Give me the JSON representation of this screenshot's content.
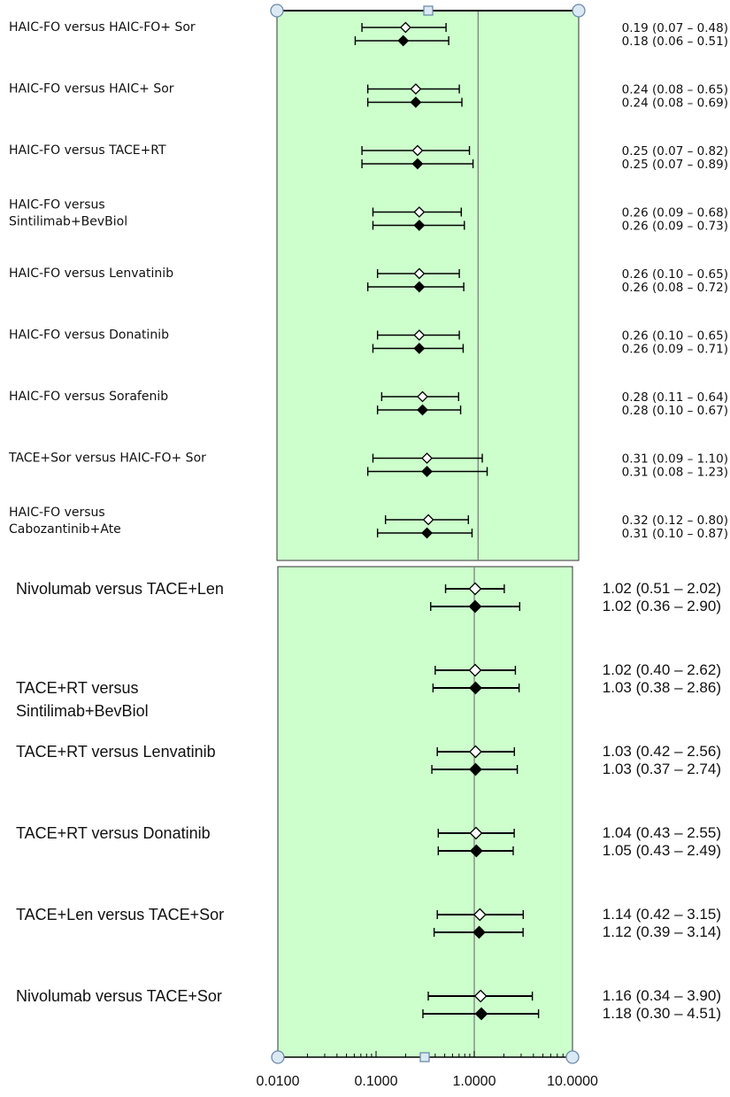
{
  "chart_data": [
    {
      "type": "forest",
      "x_scale": "log",
      "xlim": [
        0.01,
        10
      ],
      "reference_line": 1,
      "marker_legend": {
        "open_diamond": "open",
        "filled_diamond": "filled"
      },
      "rows": [
        {
          "label_lines": [
            "HAIC-FO versus HAIC-FO+ Sor"
          ],
          "open": {
            "est": 0.19,
            "lo": 0.07,
            "hi": 0.48,
            "text": "0.19 (0.07 – 0.48)"
          },
          "filled": {
            "est": 0.18,
            "lo": 0.06,
            "hi": 0.51,
            "text": "0.18 (0.06 – 0.51)"
          }
        },
        {
          "label_lines": [
            "HAIC-FO versus HAIC+ Sor"
          ],
          "open": {
            "est": 0.24,
            "lo": 0.08,
            "hi": 0.65,
            "text": "0.24 (0.08 – 0.65)"
          },
          "filled": {
            "est": 0.24,
            "lo": 0.08,
            "hi": 0.69,
            "text": "0.24 (0.08 – 0.69)"
          }
        },
        {
          "label_lines": [
            "HAIC-FO versus TACE+RT"
          ],
          "open": {
            "est": 0.25,
            "lo": 0.07,
            "hi": 0.82,
            "text": "0.25 (0.07 – 0.82)"
          },
          "filled": {
            "est": 0.25,
            "lo": 0.07,
            "hi": 0.89,
            "text": "0.25 (0.07 – 0.89)"
          }
        },
        {
          "label_lines": [
            "HAIC-FO versus",
            "Sintilimab+BevBiol"
          ],
          "open": {
            "est": 0.26,
            "lo": 0.09,
            "hi": 0.68,
            "text": "0.26 (0.09 – 0.68)"
          },
          "filled": {
            "est": 0.26,
            "lo": 0.09,
            "hi": 0.73,
            "text": "0.26 (0.09 – 0.73)"
          }
        },
        {
          "label_lines": [
            "HAIC-FO versus Lenvatinib"
          ],
          "open": {
            "est": 0.26,
            "lo": 0.1,
            "hi": 0.65,
            "text": "0.26 (0.10 – 0.65)"
          },
          "filled": {
            "est": 0.26,
            "lo": 0.08,
            "hi": 0.72,
            "text": "0.26 (0.08 – 0.72)"
          }
        },
        {
          "label_lines": [
            "HAIC-FO versus Donatinib"
          ],
          "open": {
            "est": 0.26,
            "lo": 0.1,
            "hi": 0.65,
            "text": "0.26 (0.10 – 0.65)"
          },
          "filled": {
            "est": 0.26,
            "lo": 0.09,
            "hi": 0.71,
            "text": "0.26 (0.09 – 0.71)"
          }
        },
        {
          "label_lines": [
            "HAIC-FO versus Sorafenib"
          ],
          "open": {
            "est": 0.28,
            "lo": 0.11,
            "hi": 0.64,
            "text": "0.28 (0.11 – 0.64)"
          },
          "filled": {
            "est": 0.28,
            "lo": 0.1,
            "hi": 0.67,
            "text": "0.28 (0.10 – 0.67)"
          }
        },
        {
          "label_lines": [
            "TACE+Sor versus HAIC-FO+ Sor"
          ],
          "open": {
            "est": 0.31,
            "lo": 0.09,
            "hi": 1.1,
            "text": "0.31 (0.09 – 1.10)"
          },
          "filled": {
            "est": 0.31,
            "lo": 0.08,
            "hi": 1.23,
            "text": "0.31 (0.08 – 1.23)"
          }
        },
        {
          "label_lines": [
            "HAIC-FO versus",
            "Cabozantinib+Ate"
          ],
          "open": {
            "est": 0.32,
            "lo": 0.12,
            "hi": 0.8,
            "text": "0.32 (0.12 – 0.80)"
          },
          "filled": {
            "est": 0.31,
            "lo": 0.1,
            "hi": 0.87,
            "text": "0.31 (0.10 – 0.87)"
          }
        }
      ]
    },
    {
      "type": "forest",
      "x_scale": "log",
      "xlim": [
        0.01,
        10
      ],
      "reference_line": 1,
      "x_ticks": [
        "0.0100",
        "0.1000",
        "1.0000",
        "10.0000"
      ],
      "rows": [
        {
          "label_lines": [
            "Nivolumab versus TACE+Len"
          ],
          "open": {
            "est": 1.02,
            "lo": 0.51,
            "hi": 2.02,
            "text": "1.02 (0.51 – 2.02)"
          },
          "filled": {
            "est": 1.02,
            "lo": 0.36,
            "hi": 2.9,
            "text": "1.02 (0.36 – 2.90)"
          }
        },
        {
          "label_lines": [
            "TACE+RT versus",
            "Sintilimab+BevBiol"
          ],
          "open": {
            "est": 1.02,
            "lo": 0.4,
            "hi": 2.62,
            "text": "1.02 (0.40 – 2.62)"
          },
          "filled": {
            "est": 1.03,
            "lo": 0.38,
            "hi": 2.86,
            "text": "1.03 (0.38 – 2.86)"
          }
        },
        {
          "label_lines": [
            "TACE+RT versus Lenvatinib"
          ],
          "open": {
            "est": 1.03,
            "lo": 0.42,
            "hi": 2.56,
            "text": "1.03 (0.42 – 2.56)"
          },
          "filled": {
            "est": 1.03,
            "lo": 0.37,
            "hi": 2.74,
            "text": "1.03 (0.37 – 2.74)"
          }
        },
        {
          "label_lines": [
            "TACE+RT versus Donatinib"
          ],
          "open": {
            "est": 1.04,
            "lo": 0.43,
            "hi": 2.55,
            "text": "1.04 (0.43 – 2.55)"
          },
          "filled": {
            "est": 1.05,
            "lo": 0.43,
            "hi": 2.49,
            "text": "1.05 (0.43 – 2.49)"
          }
        },
        {
          "label_lines": [
            "TACE+Len versus TACE+Sor"
          ],
          "open": {
            "est": 1.14,
            "lo": 0.42,
            "hi": 3.15,
            "text": "1.14 (0.42 – 3.15)"
          },
          "filled": {
            "est": 1.12,
            "lo": 0.39,
            "hi": 3.14,
            "text": "1.12 (0.39 – 3.14)"
          }
        },
        {
          "label_lines": [
            "Nivolumab versus TACE+Sor"
          ],
          "open": {
            "est": 1.16,
            "lo": 0.34,
            "hi": 3.9,
            "text": "1.16 (0.34 – 3.90)"
          },
          "filled": {
            "est": 1.18,
            "lo": 0.3,
            "hi": 4.51,
            "text": "1.18 (0.30 – 4.51)"
          }
        }
      ]
    }
  ],
  "colors": {
    "panel_fill": "#ccffcc",
    "panel_border": "#333333",
    "reference_line": "#808080",
    "handle_fill": "#dbe9f5",
    "handle_stroke": "#6c8ba8",
    "text": "#111111"
  }
}
